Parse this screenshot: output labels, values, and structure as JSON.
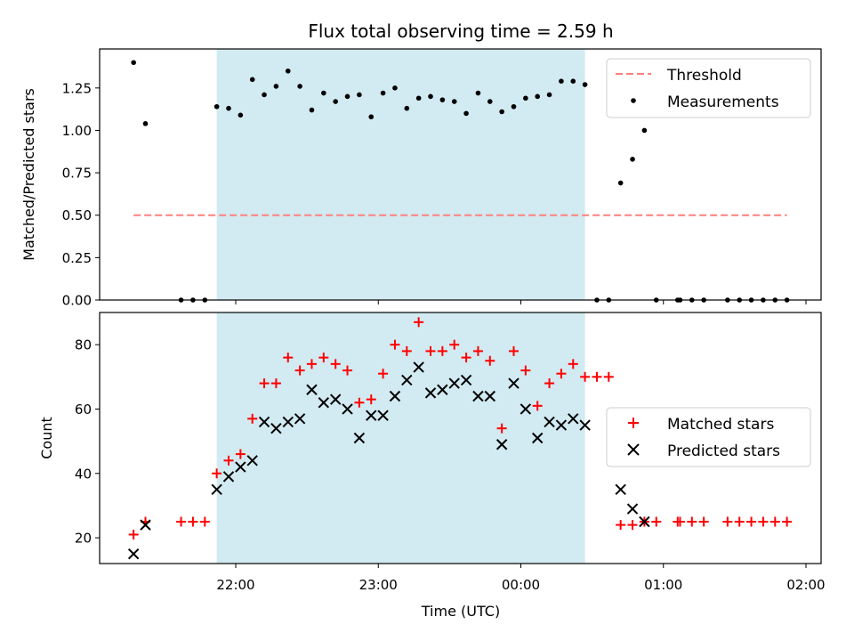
{
  "title": "Flux total observing time = 2.59 h",
  "xlabel": "Time (UTC)",
  "x_ticks": [
    "22:00",
    "23:00",
    "00:00",
    "01:00",
    "02:00"
  ],
  "shaded_region": {
    "start": "21:52",
    "end": "00:27",
    "color": "#add8e6"
  },
  "chart_data": [
    {
      "type": "scatter",
      "ylabel": "Matched/Predicted stars",
      "ylim": [
        0,
        1.48
      ],
      "yticks": [
        "0.00",
        "0.25",
        "0.50",
        "0.75",
        "1.00",
        "1.25"
      ],
      "legend_position": "top-right",
      "threshold": {
        "name": "Threshold",
        "value": 0.5,
        "x_start": "21:17",
        "x_end": "01:52",
        "color": "#ff7f7f"
      },
      "series": [
        {
          "name": "Measurements",
          "color": "#000000",
          "points": [
            [
              "21:17",
              1.4
            ],
            [
              "21:22",
              1.04
            ],
            [
              "21:37",
              0.0
            ],
            [
              "21:42",
              0.0
            ],
            [
              "21:47",
              0.0
            ],
            [
              "21:52",
              1.14
            ],
            [
              "21:57",
              1.13
            ],
            [
              "22:02",
              1.09
            ],
            [
              "22:07",
              1.3
            ],
            [
              "22:12",
              1.21
            ],
            [
              "22:17",
              1.26
            ],
            [
              "22:22",
              1.35
            ],
            [
              "22:27",
              1.26
            ],
            [
              "22:32",
              1.12
            ],
            [
              "22:37",
              1.22
            ],
            [
              "22:42",
              1.17
            ],
            [
              "22:47",
              1.2
            ],
            [
              "22:52",
              1.21
            ],
            [
              "22:57",
              1.08
            ],
            [
              "23:02",
              1.22
            ],
            [
              "23:07",
              1.25
            ],
            [
              "23:12",
              1.13
            ],
            [
              "23:17",
              1.19
            ],
            [
              "23:22",
              1.2
            ],
            [
              "23:27",
              1.18
            ],
            [
              "23:32",
              1.17
            ],
            [
              "23:37",
              1.1
            ],
            [
              "23:42",
              1.22
            ],
            [
              "23:47",
              1.17
            ],
            [
              "23:52",
              1.11
            ],
            [
              "23:57",
              1.14
            ],
            [
              "00:02",
              1.19
            ],
            [
              "00:07",
              1.2
            ],
            [
              "00:12",
              1.21
            ],
            [
              "00:17",
              1.29
            ],
            [
              "00:22",
              1.29
            ],
            [
              "00:27",
              1.27
            ],
            [
              "00:32",
              0.0
            ],
            [
              "00:37",
              0.0
            ],
            [
              "00:42",
              0.69
            ],
            [
              "00:47",
              0.83
            ],
            [
              "00:52",
              1.0
            ],
            [
              "00:57",
              0.0
            ],
            [
              "01:06",
              0.0
            ],
            [
              "01:07",
              0.0
            ],
            [
              "01:12",
              0.0
            ],
            [
              "01:17",
              0.0
            ],
            [
              "01:27",
              0.0
            ],
            [
              "01:32",
              0.0
            ],
            [
              "01:37",
              0.0
            ],
            [
              "01:42",
              0.0
            ],
            [
              "01:47",
              0.0
            ],
            [
              "01:52",
              0.0
            ]
          ]
        }
      ]
    },
    {
      "type": "scatter",
      "ylabel": "Count",
      "ylim": [
        12,
        90
      ],
      "yticks": [
        "20",
        "40",
        "60",
        "80"
      ],
      "legend_position": "center-right",
      "series": [
        {
          "name": "Matched stars",
          "marker": "plus",
          "color": "#ff0000",
          "points": [
            [
              "21:17",
              21
            ],
            [
              "21:22",
              25
            ],
            [
              "21:37",
              25
            ],
            [
              "21:42",
              25
            ],
            [
              "21:47",
              25
            ],
            [
              "21:52",
              40
            ],
            [
              "21:57",
              44
            ],
            [
              "22:02",
              46
            ],
            [
              "22:07",
              57
            ],
            [
              "22:12",
              68
            ],
            [
              "22:17",
              68
            ],
            [
              "22:22",
              76
            ],
            [
              "22:27",
              72
            ],
            [
              "22:32",
              74
            ],
            [
              "22:37",
              76
            ],
            [
              "22:42",
              74
            ],
            [
              "22:47",
              72
            ],
            [
              "22:52",
              62
            ],
            [
              "22:57",
              63
            ],
            [
              "23:02",
              71
            ],
            [
              "23:07",
              80
            ],
            [
              "23:12",
              78
            ],
            [
              "23:17",
              87
            ],
            [
              "23:22",
              78
            ],
            [
              "23:27",
              78
            ],
            [
              "23:32",
              80
            ],
            [
              "23:37",
              76
            ],
            [
              "23:42",
              78
            ],
            [
              "23:47",
              75
            ],
            [
              "23:52",
              54
            ],
            [
              "23:57",
              78
            ],
            [
              "00:02",
              72
            ],
            [
              "00:07",
              61
            ],
            [
              "00:12",
              68
            ],
            [
              "00:17",
              71
            ],
            [
              "00:22",
              74
            ],
            [
              "00:27",
              70
            ],
            [
              "00:32",
              70
            ],
            [
              "00:37",
              70
            ],
            [
              "00:42",
              24
            ],
            [
              "00:47",
              24
            ],
            [
              "00:52",
              25
            ],
            [
              "00:57",
              25
            ],
            [
              "01:06",
              25
            ],
            [
              "01:07",
              25
            ],
            [
              "01:12",
              25
            ],
            [
              "01:17",
              25
            ],
            [
              "01:27",
              25
            ],
            [
              "01:32",
              25
            ],
            [
              "01:37",
              25
            ],
            [
              "01:42",
              25
            ],
            [
              "01:47",
              25
            ],
            [
              "01:52",
              25
            ]
          ]
        },
        {
          "name": "Predicted stars",
          "marker": "x",
          "color": "#000000",
          "points": [
            [
              "21:17",
              15
            ],
            [
              "21:22",
              24
            ],
            [
              "21:52",
              35
            ],
            [
              "21:57",
              39
            ],
            [
              "22:02",
              42
            ],
            [
              "22:07",
              44
            ],
            [
              "22:12",
              56
            ],
            [
              "22:17",
              54
            ],
            [
              "22:22",
              56
            ],
            [
              "22:27",
              57
            ],
            [
              "22:32",
              66
            ],
            [
              "22:37",
              62
            ],
            [
              "22:42",
              63
            ],
            [
              "22:47",
              60
            ],
            [
              "22:52",
              51
            ],
            [
              "22:57",
              58
            ],
            [
              "23:02",
              58
            ],
            [
              "23:07",
              64
            ],
            [
              "23:12",
              69
            ],
            [
              "23:17",
              73
            ],
            [
              "23:22",
              65
            ],
            [
              "23:27",
              66
            ],
            [
              "23:32",
              68
            ],
            [
              "23:37",
              69
            ],
            [
              "23:42",
              64
            ],
            [
              "23:47",
              64
            ],
            [
              "23:52",
              49
            ],
            [
              "23:57",
              68
            ],
            [
              "00:02",
              60
            ],
            [
              "00:07",
              51
            ],
            [
              "00:12",
              56
            ],
            [
              "00:17",
              55
            ],
            [
              "00:22",
              57
            ],
            [
              "00:27",
              55
            ],
            [
              "00:42",
              35
            ],
            [
              "00:47",
              29
            ],
            [
              "00:52",
              25
            ]
          ]
        }
      ]
    }
  ]
}
